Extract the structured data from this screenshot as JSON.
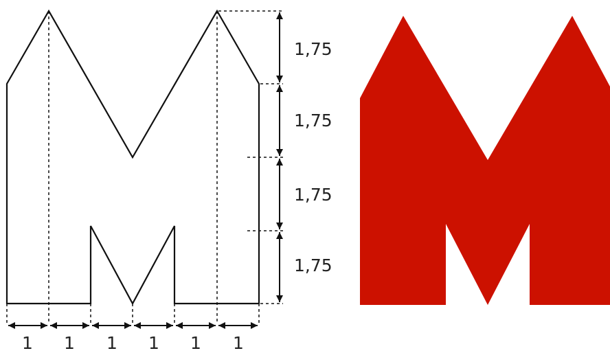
{
  "diagram": {
    "vertical_dimensions": [
      "1,75",
      "1,75",
      "1,75",
      "1,75"
    ],
    "horizontal_dimensions": [
      "1",
      "1",
      "1",
      "1",
      "1",
      "1"
    ]
  },
  "logo": {
    "name": "red-m-logo",
    "color": "#cc1100"
  },
  "colors": {
    "outline": "#111111",
    "text": "#222222"
  }
}
